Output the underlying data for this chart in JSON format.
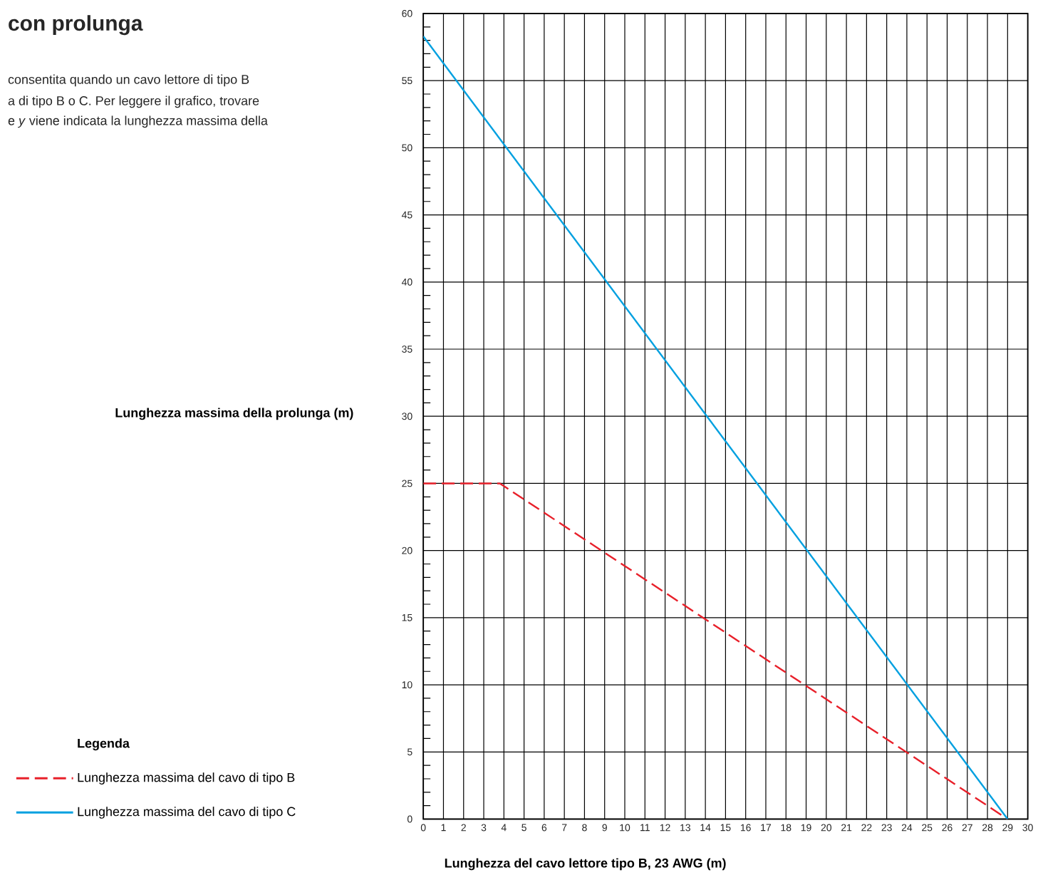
{
  "chart_data": {
    "type": "line",
    "title": "con prolunga",
    "annotations": [
      "consentita quando un cavo lettore di tipo B",
      "a di tipo B o C. Per leggere il grafico, trovare",
      "e *y* viene indicata la lunghezza massima della"
    ],
    "xlabel": "Lunghezza del cavo lettore tipo B, 23 AWG (m)",
    "ylabel": "Lunghezza massima della prolunga (m)",
    "legend_title": "Legenda",
    "legend": "left",
    "series": [
      {
        "name": "Lunghezza massima del cavo di tipo B",
        "color": "#e8202a",
        "line_style": "dashed",
        "x": [
          0,
          3.8,
          29
        ],
        "values": [
          25,
          25,
          0
        ]
      },
      {
        "name": "Lunghezza massima del cavo di tipo C",
        "color": "#00a0e0",
        "line_style": "solid",
        "x": [
          0,
          29
        ],
        "values": [
          58.3,
          0
        ]
      }
    ],
    "xlim": [
      0,
      30
    ],
    "ylim": [
      0,
      60
    ],
    "xticks": [
      0,
      1,
      2,
      3,
      4,
      5,
      6,
      7,
      8,
      9,
      10,
      11,
      12,
      13,
      14,
      15,
      16,
      17,
      18,
      19,
      20,
      21,
      22,
      23,
      24,
      25,
      26,
      27,
      28,
      29,
      30
    ],
    "yticks": [
      0,
      5,
      10,
      15,
      20,
      25,
      30,
      35,
      40,
      45,
      50,
      55,
      60
    ],
    "grid": true
  }
}
